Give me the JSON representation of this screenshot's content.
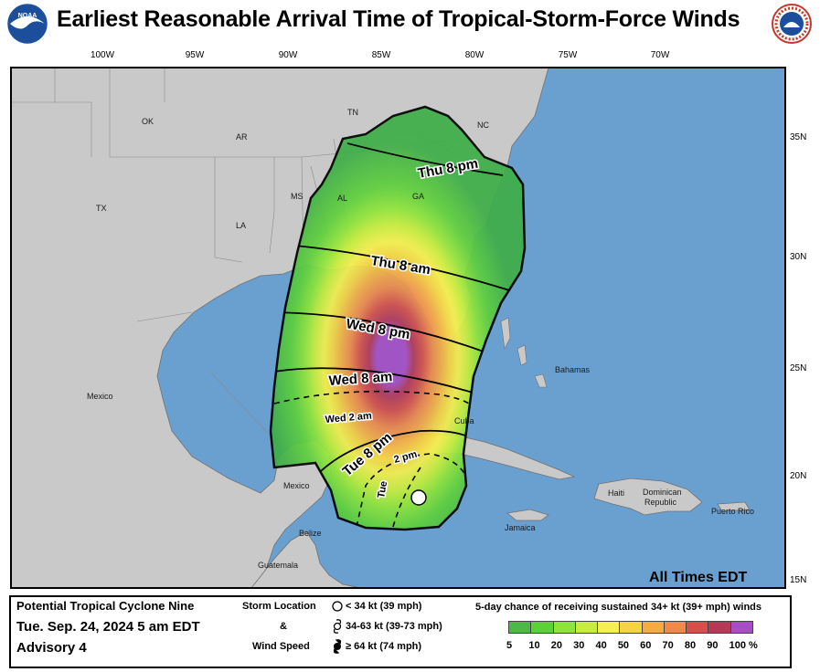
{
  "title": "Earliest Reasonable Arrival Time of Tropical-Storm-Force Winds",
  "logos": {
    "left": "noaa-logo",
    "right": "nws-logo"
  },
  "map": {
    "lon_labels": [
      "100W",
      "95W",
      "90W",
      "85W",
      "80W",
      "75W",
      "70W"
    ],
    "lat_labels": [
      "35N",
      "30N",
      "25N",
      "20N",
      "15N"
    ],
    "place_labels": {
      "ok": "OK",
      "ar": "AR",
      "tn": "TN",
      "nc": "NC",
      "ms": "MS",
      "al": "AL",
      "ga": "GA",
      "tx": "TX",
      "la": "LA",
      "mexico_north": "Mexico",
      "mexico_south": "Mexico",
      "bahamas": "Bahamas",
      "cuba": "Cuba",
      "haiti": "Haiti",
      "dominican": "Dominican",
      "republic": "Republic",
      "puerto_rico": "Puerto Rico",
      "jamaica": "Jamaica",
      "belize": "Belize",
      "guatemala": "Guatemala"
    },
    "time_labels": {
      "thu8pm": "Thu  8  pm",
      "thu8am": "Thu  8  am",
      "wed8pm": "Wed  8  pm",
      "wed8am": "Wed  8  am",
      "wed2am": "Wed   2   am",
      "tue8pm": "Tue  8  pm",
      "tue2pm": "2   pm",
      "tue": "Tue"
    },
    "all_times": "All Times EDT",
    "colors": {
      "water": "#6aa0d0",
      "land": "#c9c9c9"
    }
  },
  "legend": {
    "storm_name": "Potential Tropical Cyclone Nine",
    "datetime": "Tue. Sep. 24, 2024  5 am EDT",
    "advisory": "Advisory 4",
    "storm_location_label": "Storm Location",
    "ampersand": "&",
    "wind_speed_label": "Wind Speed",
    "wind_items": [
      "< 34 kt (39 mph)",
      "34-63 kt (39-73 mph)",
      "≥ 64 kt (74 mph)"
    ],
    "probability_title": "5-day chance of receiving sustained 34+ kt (39+ mph) winds",
    "scale_values": [
      "5",
      "10",
      "20",
      "30",
      "40",
      "50",
      "60",
      "70",
      "80",
      "90",
      "100 %"
    ],
    "scale_colors": [
      "#4eb748",
      "#5fd03c",
      "#8ee43a",
      "#c8ee3c",
      "#f5f04c",
      "#f5d442",
      "#f3ac45",
      "#ee8a4b",
      "#d5504a",
      "#b43a58",
      "#a64fc3"
    ]
  }
}
